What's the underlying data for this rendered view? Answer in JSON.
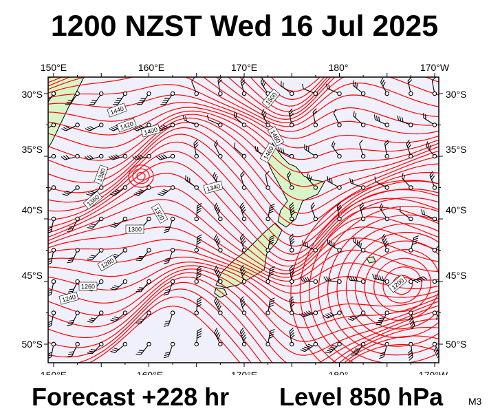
{
  "title": "1200 NZST Wed 16 Jul 2025",
  "footer": {
    "forecast": "Forecast +228 hr",
    "level": "Level 850 hPa",
    "model": "M3"
  },
  "map": {
    "projection": "lat-lon",
    "lon_range": [
      150,
      190
    ],
    "lat_range": [
      -52.5,
      -28
    ],
    "lon_ticks": [
      "150°E",
      "160°E",
      "170°E",
      "180°",
      "170°W"
    ],
    "lat_ticks": [
      "30°S",
      "35°S",
      "40°S",
      "45°S",
      "50°S"
    ],
    "field": "850 hPa geopotential height (m), contour interval 20 m",
    "contour_labels": [
      "1440",
      "1420",
      "1400",
      "1380",
      "1360",
      "1340",
      "1320",
      "1300",
      "1280",
      "1260",
      "1240",
      "1500",
      "1480",
      "1460"
    ],
    "low_centre_label": "1200",
    "colors": {
      "ocean": "#f0f0fc",
      "land": "#d8f5c8",
      "contour": "#ff0000",
      "wind": "#000000",
      "frame": "#000000"
    },
    "wind": "wind barbs every 2.5°"
  }
}
